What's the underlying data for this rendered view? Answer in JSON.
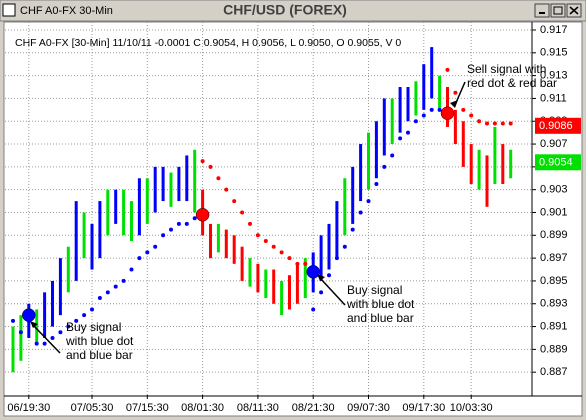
{
  "window_title": "CHF A0-FX 30-Min",
  "chart_data": {
    "type": "bar-range",
    "title": "CHF/USD (FOREX)",
    "header_line": "CHF A0-FX [30-Min] 11/10/11  -0.0001  C 0.9054, H 0.9056, L 0.9050, O 0.9055, V 0",
    "categories": [
      null,
      null,
      "06/19:30",
      null,
      null,
      null,
      null,
      null,
      null,
      null,
      "07/05:30",
      null,
      null,
      null,
      null,
      null,
      null,
      "07/15:30",
      null,
      null,
      null,
      null,
      null,
      null,
      "08/01:30",
      null,
      null,
      null,
      null,
      null,
      null,
      "08/11:30",
      null,
      null,
      null,
      null,
      null,
      null,
      "08/21:30",
      null,
      null,
      null,
      null,
      null,
      null,
      "09/07:30",
      null,
      null,
      null,
      null,
      null,
      null,
      "09/17:30",
      null,
      null,
      null,
      null,
      null,
      "10/03:30",
      null,
      null,
      null,
      null,
      null
    ],
    "bars": {
      "low": [
        0.887,
        0.888,
        0.89,
        0.8895,
        0.89,
        0.891,
        0.892,
        0.894,
        0.895,
        0.897,
        0.896,
        0.897,
        0.899,
        0.9,
        0.899,
        0.8985,
        0.899,
        0.9,
        0.901,
        0.902,
        0.9015,
        0.902,
        0.902,
        0.901,
        0.899,
        0.897,
        0.8975,
        0.897,
        0.8965,
        0.895,
        0.8945,
        0.894,
        0.8935,
        0.893,
        0.892,
        0.8925,
        0.893,
        0.8935,
        0.894,
        0.895,
        0.896,
        0.897,
        0.899,
        0.9,
        0.902,
        0.903,
        0.904,
        0.906,
        0.907,
        0.908,
        0.909,
        0.9095,
        0.91,
        0.911,
        0.91,
        0.9085,
        0.907,
        0.905,
        0.9035,
        0.903,
        0.9015,
        0.9035,
        0.9035,
        0.904
      ],
      "high": [
        0.891,
        0.892,
        0.893,
        0.8925,
        0.894,
        0.895,
        0.897,
        0.898,
        0.902,
        0.901,
        0.9,
        0.902,
        0.903,
        0.903,
        0.903,
        0.902,
        0.904,
        0.904,
        0.905,
        0.905,
        0.9045,
        0.905,
        0.906,
        0.9065,
        0.903,
        0.9,
        0.9,
        0.8995,
        0.899,
        0.898,
        0.897,
        0.8965,
        0.896,
        0.896,
        0.895,
        0.8955,
        0.8965,
        0.897,
        0.8975,
        0.899,
        0.9,
        0.902,
        0.904,
        0.905,
        0.907,
        0.908,
        0.909,
        0.911,
        0.911,
        0.912,
        0.912,
        0.9125,
        0.914,
        0.9155,
        0.913,
        0.912,
        0.91,
        0.909,
        0.907,
        0.9065,
        0.906,
        0.9085,
        0.907,
        0.9065
      ],
      "colors": [
        "#00e000",
        "#00e000",
        "#0000ff",
        "#00e000",
        "#0000ff",
        "#0000ff",
        "#0000ff",
        "#00e000",
        "#0000ff",
        "#00e000",
        "#0000ff",
        "#0000ff",
        "#00e000",
        "#0000ff",
        "#00e000",
        "#00e000",
        "#0000ff",
        "#00e000",
        "#0000ff",
        "#0000ff",
        "#00e000",
        "#0000ff",
        "#0000ff",
        "#00e000",
        "#ff0000",
        "#ff0000",
        "#00e000",
        "#ff0000",
        "#ff0000",
        "#ff0000",
        "#00e000",
        "#ff0000",
        "#00e000",
        "#ff0000",
        "#00e000",
        "#ff0000",
        "#ff0000",
        "#00e000",
        "#0000ff",
        "#0000ff",
        "#0000ff",
        "#0000ff",
        "#00e000",
        "#0000ff",
        "#0000ff",
        "#00e000",
        "#0000ff",
        "#0000ff",
        "#00e000",
        "#0000ff",
        "#0000ff",
        "#00e000",
        "#0000ff",
        "#0000ff",
        "#00e000",
        "#ff0000",
        "#ff0000",
        "#ff0000",
        "#ff0000",
        "#00e000",
        "#ff0000",
        "#00e000",
        "#ff0000",
        "#00e000"
      ]
    },
    "dots": {
      "values": [
        0.8915,
        0.8905,
        0.8915,
        0.8895,
        0.8895,
        0.89,
        0.8905,
        0.891,
        0.8915,
        0.892,
        0.8925,
        0.8935,
        0.894,
        0.8945,
        0.895,
        0.896,
        0.897,
        0.8975,
        0.898,
        0.899,
        0.8995,
        0.9,
        0.9,
        0.9005,
        0.9055,
        0.905,
        0.904,
        0.903,
        0.902,
        0.901,
        0.9,
        0.899,
        0.8985,
        0.898,
        0.8975,
        0.897,
        0.8965,
        0.8965,
        0.8925,
        0.894,
        0.8955,
        0.897,
        0.898,
        0.8995,
        0.901,
        0.902,
        0.9035,
        0.905,
        0.906,
        0.9075,
        0.908,
        0.909,
        0.9095,
        0.91,
        0.91,
        0.9135,
        0.9115,
        0.91,
        0.9095,
        0.909,
        0.9088,
        0.9088,
        0.9088,
        0.9088
      ],
      "colors": [
        "#0000ff",
        "#0000ff",
        "#0000ff",
        "#0000ff",
        "#0000ff",
        "#0000ff",
        "#0000ff",
        "#0000ff",
        "#0000ff",
        "#0000ff",
        "#0000ff",
        "#0000ff",
        "#0000ff",
        "#0000ff",
        "#0000ff",
        "#0000ff",
        "#0000ff",
        "#0000ff",
        "#0000ff",
        "#0000ff",
        "#0000ff",
        "#0000ff",
        "#0000ff",
        "#0000ff",
        "#ff0000",
        "#ff0000",
        "#ff0000",
        "#ff0000",
        "#ff0000",
        "#ff0000",
        "#ff0000",
        "#ff0000",
        "#ff0000",
        "#ff0000",
        "#ff0000",
        "#ff0000",
        "#ff0000",
        "#ff0000",
        "#0000ff",
        "#0000ff",
        "#0000ff",
        "#0000ff",
        "#0000ff",
        "#0000ff",
        "#0000ff",
        "#0000ff",
        "#0000ff",
        "#0000ff",
        "#0000ff",
        "#0000ff",
        "#0000ff",
        "#0000ff",
        "#0000ff",
        "#0000ff",
        "#0000ff",
        "#ff0000",
        "#ff0000",
        "#ff0000",
        "#ff0000",
        "#ff0000",
        "#ff0000",
        "#ff0000",
        "#ff0000",
        "#ff0000"
      ]
    },
    "signals": [
      null,
      null,
      {
        "value": 0.892,
        "color": "#0000ff"
      },
      null,
      null,
      null,
      null,
      null,
      null,
      null,
      null,
      null,
      null,
      null,
      null,
      null,
      null,
      null,
      null,
      null,
      null,
      null,
      null,
      null,
      {
        "value": 0.9008,
        "color": "#ff0000"
      },
      null,
      null,
      null,
      null,
      null,
      null,
      null,
      null,
      null,
      null,
      null,
      null,
      null,
      {
        "value": 0.8958,
        "color": "#0000ff"
      },
      null,
      null,
      null,
      null,
      null,
      null,
      null,
      null,
      null,
      null,
      null,
      null,
      null,
      null,
      null,
      null,
      {
        "value": 0.9097,
        "color": "#ff0000"
      },
      null,
      null,
      null,
      null,
      null,
      null,
      null,
      null
    ],
    "ylim": [
      0.885,
      0.9177
    ],
    "yticks": [
      0.887,
      0.889,
      0.891,
      0.893,
      0.895,
      0.897,
      0.899,
      0.901,
      0.903,
      0.905,
      0.907,
      0.909,
      0.911,
      0.913,
      0.915,
      0.917
    ],
    "price_tags": [
      {
        "value": 0.9086,
        "color": "#ff0000"
      },
      {
        "value": 0.9054,
        "color": "#00e000"
      }
    ],
    "annotations": [
      {
        "lines": [
          "Sell signal with",
          "red dot & red bar"
        ]
      },
      {
        "lines": [
          "Buy signal",
          "with blue dot",
          "and blue bar"
        ]
      },
      {
        "lines": [
          "Buy signal",
          "with blue dot",
          "and blue bar"
        ]
      }
    ],
    "grid": true
  }
}
